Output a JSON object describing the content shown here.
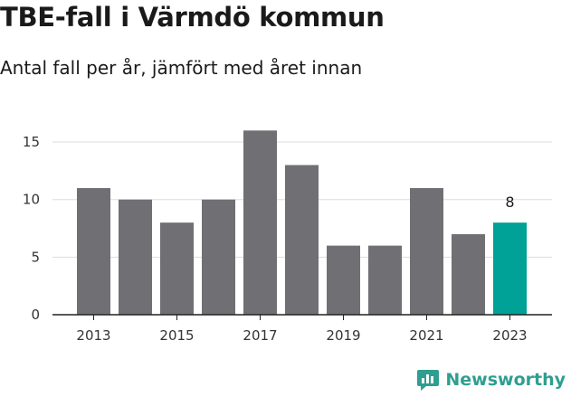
{
  "title": "TBE-fall i Värmdö kommun",
  "subtitle": "Antal fall per år, jämfört med året innan",
  "brand": {
    "name": "Newsworthy"
  },
  "colors": {
    "bar": "#706f74",
    "highlight": "#00a196",
    "grid": "#dddddd",
    "axis": "#222222",
    "brand": "#2f9e90"
  },
  "chart_data": {
    "type": "bar",
    "categories": [
      "2013",
      "2014",
      "2015",
      "2016",
      "2017",
      "2018",
      "2019",
      "2020",
      "2021",
      "2022",
      "2023"
    ],
    "values": [
      11,
      10,
      8,
      10,
      16,
      13,
      6,
      6,
      11,
      7,
      8
    ],
    "highlight_index": 10,
    "data_labels": [
      {
        "index": 10,
        "text": "8"
      }
    ],
    "xticks": [
      "2013",
      "2015",
      "2017",
      "2019",
      "2021",
      "2023"
    ],
    "yticks": [
      0,
      5,
      10,
      15
    ],
    "ylim": [
      0,
      16
    ],
    "grid": true,
    "xlabel": "",
    "ylabel": ""
  }
}
